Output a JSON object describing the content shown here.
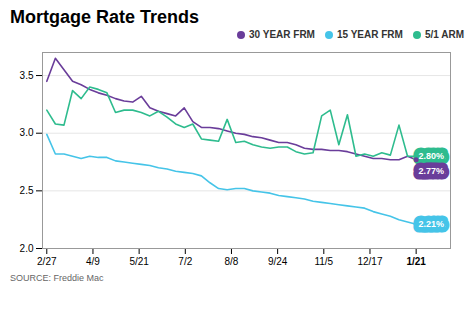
{
  "chart_data": {
    "type": "line",
    "title": "Mortgage Rate Trends",
    "source": "SOURCE: Freddie Mac",
    "x": [
      0,
      1,
      2,
      3,
      4,
      5,
      6,
      7,
      8,
      9,
      10,
      11,
      12,
      13,
      14,
      15,
      16,
      17,
      18,
      19,
      20,
      21,
      22,
      23,
      24,
      25,
      26,
      27,
      28,
      29,
      30,
      31,
      32,
      33,
      34,
      35,
      36,
      37,
      38,
      39,
      40,
      41,
      42,
      43
    ],
    "series": [
      {
        "name": "30 YEAR FRM",
        "color": "#6a3d9a",
        "values": [
          3.45,
          3.65,
          3.55,
          3.45,
          3.42,
          3.38,
          3.35,
          3.33,
          3.3,
          3.28,
          3.27,
          3.32,
          3.22,
          3.19,
          3.17,
          3.15,
          3.22,
          3.1,
          3.05,
          3.05,
          3.04,
          3.02,
          3.0,
          2.99,
          2.97,
          2.96,
          2.94,
          2.92,
          2.92,
          2.9,
          2.87,
          2.86,
          2.86,
          2.85,
          2.85,
          2.84,
          2.82,
          2.8,
          2.78,
          2.78,
          2.77,
          2.77,
          2.8,
          2.77
        ]
      },
      {
        "name": "15 YEAR FRM",
        "color": "#45c4e8",
        "values": [
          2.99,
          2.82,
          2.82,
          2.8,
          2.78,
          2.8,
          2.79,
          2.79,
          2.76,
          2.75,
          2.74,
          2.73,
          2.72,
          2.7,
          2.69,
          2.67,
          2.66,
          2.65,
          2.63,
          2.57,
          2.52,
          2.51,
          2.52,
          2.52,
          2.5,
          2.49,
          2.48,
          2.46,
          2.45,
          2.44,
          2.43,
          2.41,
          2.4,
          2.39,
          2.38,
          2.37,
          2.36,
          2.35,
          2.32,
          2.3,
          2.28,
          2.25,
          2.23,
          2.21
        ]
      },
      {
        "name": "5/1 ARM",
        "color": "#2ebc8e",
        "values": [
          3.2,
          3.08,
          3.07,
          3.37,
          3.3,
          3.4,
          3.38,
          3.35,
          3.18,
          3.2,
          3.2,
          3.18,
          3.15,
          3.19,
          3.14,
          3.08,
          3.05,
          3.08,
          2.95,
          2.94,
          2.93,
          3.12,
          2.92,
          2.93,
          2.9,
          2.88,
          2.87,
          2.88,
          2.88,
          2.84,
          2.82,
          2.83,
          3.15,
          3.2,
          2.9,
          3.16,
          2.8,
          2.82,
          2.8,
          2.83,
          2.81,
          3.07,
          2.8,
          2.8
        ]
      }
    ],
    "xlim": [
      -0.5,
      47
    ],
    "xticks": [
      {
        "value": 0,
        "label": "2/27"
      },
      {
        "value": 5.375,
        "label": "4/9"
      },
      {
        "value": 10.75,
        "label": "5/21"
      },
      {
        "value": 16.125,
        "label": "7/2"
      },
      {
        "value": 21.5,
        "label": "8/8"
      },
      {
        "value": 26.875,
        "label": "9/24"
      },
      {
        "value": 32.25,
        "label": "11/5"
      },
      {
        "value": 37.625,
        "label": "12/17"
      },
      {
        "value": 43,
        "label": "1/21"
      }
    ],
    "ylim": [
      2.0,
      3.7
    ],
    "yticks": [
      {
        "value": 2,
        "label": "2.0"
      },
      2.5,
      {
        "value": 3,
        "label": "3.0"
      },
      3.5
    ],
    "grid": true,
    "legend": "upper right",
    "annotations": [
      {
        "text": "2.77%",
        "x": 43,
        "y": 2.77,
        "color": "#6a3d9a"
      },
      {
        "text": "2.80%",
        "x": 43,
        "y": 2.8,
        "color": "#2ebc8e"
      },
      {
        "text": "2.21%",
        "x": 43,
        "y": 2.21,
        "color": "#45c4e8"
      }
    ]
  }
}
